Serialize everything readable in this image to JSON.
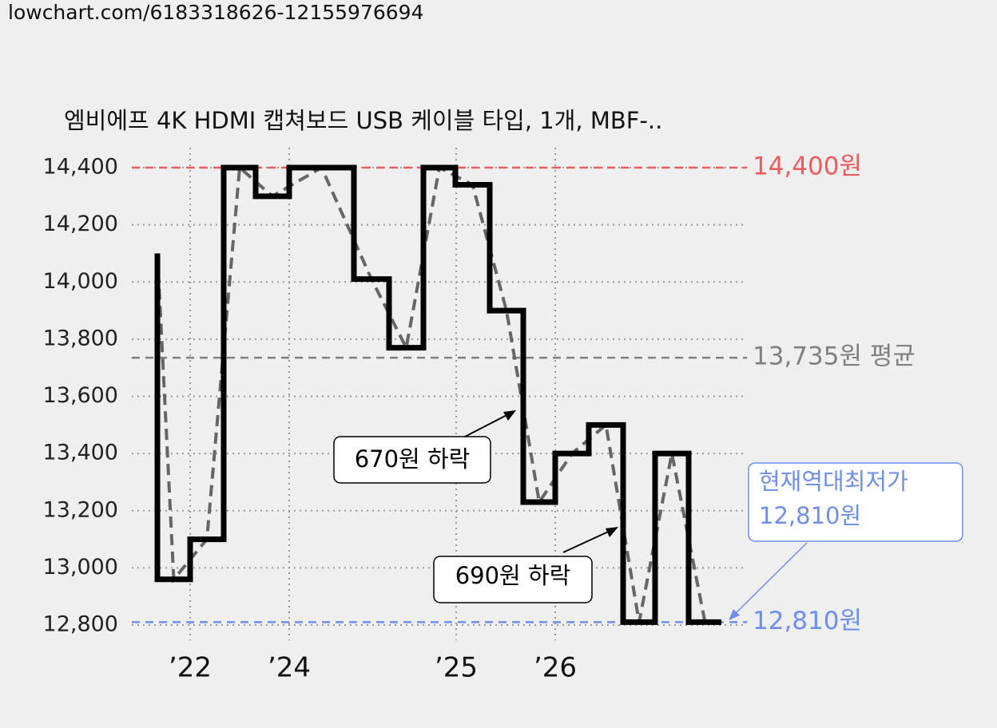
{
  "header": {
    "url": "lowchart.com/6183318626-12155976694"
  },
  "chart_data": {
    "type": "step",
    "title": "엠비에프 4K HDMI 캡쳐보드 USB 케이블 타입, 1개, MBF-..",
    "x": [
      3.2,
      3.2,
      7.3,
      11.5,
      15.5,
      19.7,
      27.8,
      32.2,
      36.5,
      40.5,
      44.8,
      49,
      53,
      57.2,
      61.5,
      65.5,
      69.7,
      73.8
    ],
    "series": [
      {
        "color": "#000000",
        "values": [
          14100,
          12960,
          13100,
          14400,
          14300,
          14400,
          14010,
          13770,
          14400,
          14340,
          13900,
          13230,
          13400,
          13500,
          12810,
          13400,
          12810,
          12810
        ]
      }
    ],
    "xlim": [
      0,
      77
    ],
    "xticks": [
      {
        "value": 7.3,
        "label": "’22"
      },
      {
        "value": 19.7,
        "label": "’24"
      },
      {
        "value": 40.6,
        "label": "’25"
      },
      {
        "value": 53,
        "label": "’26"
      }
    ],
    "ylim": [
      12800,
      14400
    ],
    "yticks": [
      {
        "value": 12800,
        "label": "12,800"
      },
      {
        "value": 13000,
        "label": "13,000"
      },
      {
        "value": 13200,
        "label": "13,200"
      },
      {
        "value": 13400,
        "label": "13,400"
      },
      {
        "value": 13600,
        "label": "13,600"
      },
      {
        "value": 13800,
        "label": "13,800"
      },
      {
        "value": 14000,
        "label": "14,000"
      },
      {
        "value": 14200,
        "label": "14,200"
      },
      {
        "value": 14400,
        "label": "14,400"
      }
    ],
    "grid": true,
    "reference_lines": [
      {
        "value": 14400,
        "label": "14,400원",
        "color": "#f05a5a"
      },
      {
        "value": 13735,
        "label": "13,735원 평균",
        "color": "#808080"
      },
      {
        "value": 12810,
        "label": "12,810원",
        "color": "#6e8ef0"
      }
    ],
    "annotations": [
      "670원 하락",
      "690원 하락"
    ],
    "current_low": {
      "lines": [
        "현재역대최저가",
        "12,810원"
      ],
      "color": "#6e8ef0"
    }
  }
}
